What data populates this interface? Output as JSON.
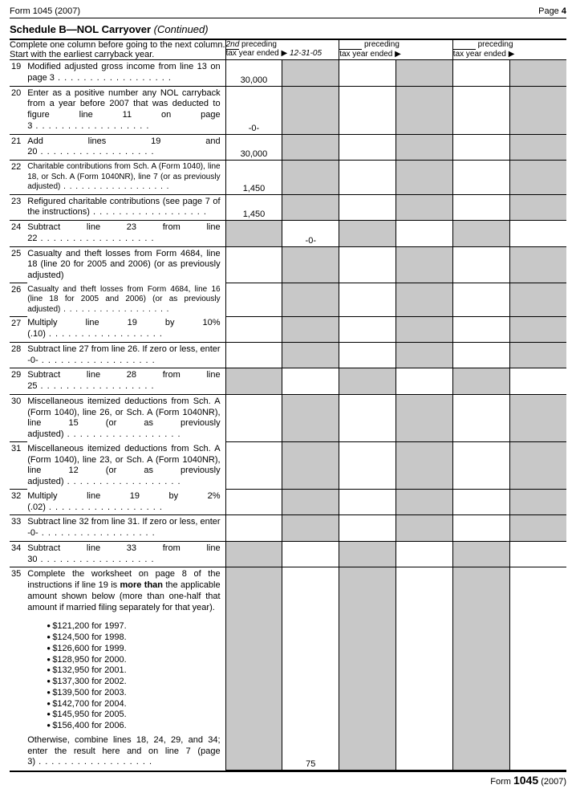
{
  "header": {
    "form_left": "Form 1045 (2007)",
    "page_label": "Page",
    "page_num": "4"
  },
  "title": {
    "bold": "Schedule B—NOL Carryover",
    "italic": "(Continued)"
  },
  "instruction": "Complete one column before going to the next column. Start with the earliest carryback year.",
  "col": {
    "c1_ord": "2nd",
    "c1_label": "preceding",
    "c1_sub": "tax year ended ▶",
    "c1_date": "12-31-05",
    "c2_label": "preceding",
    "c2_sub": "tax year ended ▶",
    "c3_label": "preceding",
    "c3_sub": "tax year ended ▶"
  },
  "rows": {
    "r19": {
      "n": "19",
      "d": "Modified adjusted gross income from line 13 on page 3",
      "a": "30,000"
    },
    "r20": {
      "n": "20",
      "d": "Enter as a positive number any NOL carryback from a year before 2007 that was deducted to figure line 11 on page 3",
      "a": "-0-"
    },
    "r21": {
      "n": "21",
      "d": "Add lines 19 and 20",
      "a": "30,000"
    },
    "r22": {
      "n": "22",
      "d": "Charitable contributions from Sch. A (Form 1040), line 18, or Sch. A (Form 1040NR), line 7 (or as previously adjusted)",
      "a": "1,450"
    },
    "r23": {
      "n": "23",
      "d": "Refigured charitable contributions (see page 7 of the instructions)",
      "a": "1,450"
    },
    "r24": {
      "n": "24",
      "d": "Subtract line 23 from line 22",
      "b": "-0-"
    },
    "r25": {
      "n": "25",
      "d": "Casualty and theft losses from Form 4684, line 18 (line 20 for 2005 and 2006) (or as previously adjusted)"
    },
    "r26": {
      "n": "26",
      "d": "Casualty and theft losses from Form 4684, line 16 (line 18 for 2005 and 2006) (or as previously adjusted)"
    },
    "r27": {
      "n": "27",
      "d": "Multiply line 19 by 10% (.10)"
    },
    "r28": {
      "n": "28",
      "d": "Subtract line 27 from line 26. If zero or less, enter -0-"
    },
    "r29": {
      "n": "29",
      "d": "Subtract line 28 from line 25"
    },
    "r30": {
      "n": "30",
      "d": "Miscellaneous itemized deductions from Sch. A (Form 1040), line 26, or Sch. A (Form 1040NR), line 15 (or as previously adjusted)"
    },
    "r31": {
      "n": "31",
      "d": "Miscellaneous itemized deductions from Sch. A (Form 1040), line 23, or Sch. A (Form 1040NR), line 12 (or as previously adjusted)"
    },
    "r32": {
      "n": "32",
      "d": "Multiply line 19 by 2% (.02)"
    },
    "r33": {
      "n": "33",
      "d": "Subtract line 32 from line 31. If zero or less, enter -0-"
    },
    "r34": {
      "n": "34",
      "d": "Subtract line 33 from line 30"
    },
    "r35": {
      "n": "35",
      "d": "Complete the worksheet on page 8 of the instructions if line 19 is more than the applicable amount shown below (more than one-half that amount if married filing separately for that year).",
      "d_more_than": "more than",
      "d2": "Otherwise, combine lines 18, 24, 29, and 34; enter the result here and on line 7 (page 3)",
      "b": "75"
    }
  },
  "thresholds": [
    "$121,200 for 1997.",
    "$124,500 for 1998.",
    "$126,600 for 1999.",
    "$128,950 for 2000.",
    "$132,950 for 2001.",
    "$137,300 for 2002.",
    "$139,500 for 2003.",
    "$142,700 for 2004.",
    "$145,950 for 2005.",
    "$156,400 for 2006."
  ],
  "footer": {
    "pre": "Form",
    "num": "1045",
    "year": "(2007)"
  },
  "colors": {
    "shade": "#c8c8c8"
  }
}
